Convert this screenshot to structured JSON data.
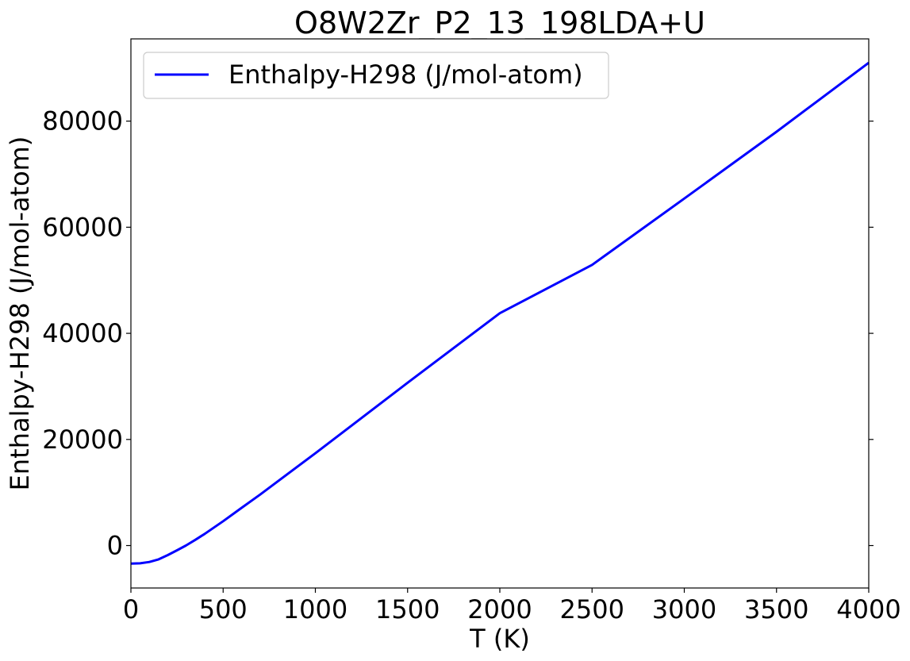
{
  "chart_data": {
    "type": "line",
    "title": "O8W2Zr_P2_13_198LDA+U",
    "xlabel": "T (K)",
    "ylabel": "Enthalpy-H298 (J/mol-atom)",
    "xlim": [
      0,
      4000
    ],
    "ylim": [
      -8000,
      95500
    ],
    "xticks": [
      0,
      500,
      1000,
      1500,
      2000,
      2500,
      3000,
      3500,
      4000
    ],
    "xtick_labels": [
      "0",
      "500",
      "1000",
      "1500",
      "2000",
      "2500",
      "3000",
      "3500",
      "4000"
    ],
    "yticks": [
      0,
      20000,
      40000,
      60000,
      80000
    ],
    "ytick_labels": [
      "0",
      "20000",
      "40000",
      "60000",
      "80000"
    ],
    "grid": false,
    "legend_position": "top-left",
    "series": [
      {
        "name": "Enthalpy-H298 (J/mol-atom)",
        "color": "#0000ff",
        "x": [
          0,
          50,
          100,
          150,
          200,
          250,
          298,
          350,
          400,
          500,
          600,
          700,
          800,
          1000,
          1200,
          1500,
          2000,
          2500,
          3000,
          3500,
          4000
        ],
        "y": [
          -3400,
          -3350,
          -3100,
          -2600,
          -1800,
          -900,
          0,
          1100,
          2200,
          4600,
          7100,
          9600,
          12200,
          17400,
          22700,
          30700,
          43800,
          52900,
          65400,
          78000,
          91000
        ]
      }
    ]
  }
}
